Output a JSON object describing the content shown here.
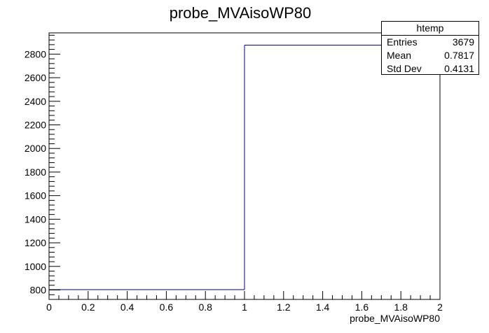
{
  "chart_data": {
    "type": "bar",
    "title": "probe_MVAisoWP80",
    "xlabel": "probe_MVAisoWP80",
    "ylabel": "",
    "xlim": [
      0,
      2
    ],
    "ylim": [
      720,
      2980
    ],
    "x_ticks": [
      "0",
      "0.2",
      "0.4",
      "0.6",
      "0.8",
      "1",
      "1.2",
      "1.4",
      "1.6",
      "1.8",
      "2"
    ],
    "y_ticks": [
      "800",
      "1000",
      "1200",
      "1400",
      "1600",
      "1800",
      "2000",
      "2200",
      "2400",
      "2600",
      "2800"
    ],
    "bins": [
      {
        "low": 0,
        "high": 1,
        "value": 803
      },
      {
        "low": 1,
        "high": 2,
        "value": 2876
      }
    ],
    "line_color": "#000080",
    "grid": false,
    "legend": "top-right"
  },
  "stats": {
    "title": "htemp",
    "rows": [
      {
        "label": "Entries",
        "value": "3679"
      },
      {
        "label": "Mean",
        "value": "0.7817"
      },
      {
        "label": "Std Dev",
        "value": "0.4131"
      }
    ]
  }
}
